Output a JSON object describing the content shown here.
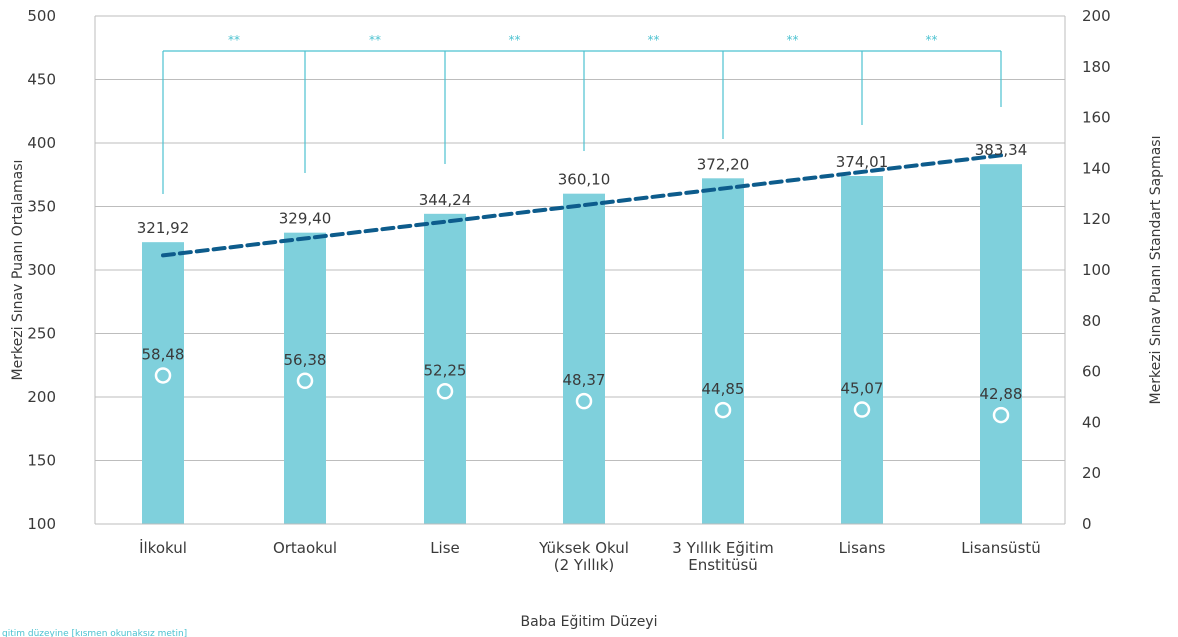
{
  "chart_data": {
    "type": "bar",
    "categories": [
      [
        "İlkokul"
      ],
      [
        "Ortaokul"
      ],
      [
        "Lise"
      ],
      [
        "Yüksek Okul",
        "(2 Yıllık)"
      ],
      [
        "3 Yıllık Eğitim",
        "Enstitüsü"
      ],
      [
        "Lisans"
      ],
      [
        "Lisansüstü"
      ]
    ],
    "series": [
      {
        "type": "bar",
        "axis": "left",
        "values": [
          321.92,
          329.4,
          344.24,
          360.1,
          372.2,
          374.01,
          383.34
        ],
        "labels": [
          "321,92",
          "329,40",
          "344,24",
          "360,10",
          "372,20",
          "374,01",
          "383,34"
        ]
      },
      {
        "type": "scatter",
        "axis": "right",
        "values": [
          58.48,
          56.38,
          52.25,
          48.37,
          44.85,
          45.07,
          42.88
        ],
        "labels": [
          "58,48",
          "56,38",
          "52,25",
          "48,37",
          "44,85",
          "45,07",
          "42,88"
        ]
      },
      {
        "type": "line",
        "style": "dashed",
        "axis": "left",
        "role": "trend",
        "start": 311.5,
        "end": 390.5
      }
    ],
    "significance": {
      "marker": "**",
      "pairs": [
        [
          0,
          1
        ],
        [
          1,
          2
        ],
        [
          2,
          3
        ],
        [
          3,
          4
        ],
        [
          4,
          5
        ],
        [
          5,
          6
        ]
      ]
    },
    "xlabel": "Baba Eğitim Düzeyi",
    "ylabel": "Merkezi Sınav Puanı Ortalaması",
    "y2label": "Merkezi Sınav Puanı Standart Sapması",
    "ylim": [
      100,
      500
    ],
    "y2lim": [
      0,
      200
    ],
    "yticks": [
      "100",
      "150",
      "200",
      "250",
      "300",
      "350",
      "400",
      "450",
      "500"
    ],
    "y2ticks": [
      "0",
      "20",
      "40",
      "60",
      "80",
      "100",
      "120",
      "140",
      "160",
      "180",
      "200"
    ],
    "grid": true,
    "colors": {
      "bar": "#7fd0dc",
      "trend": "#0d5c8c",
      "point": "#7fd0dc",
      "bracket": "#4cc2d0",
      "grid": "#bdbdbd",
      "text": "#3a3a3a"
    }
  },
  "footnote": "gitim düzeyine [kısmen okunaksız metin]"
}
